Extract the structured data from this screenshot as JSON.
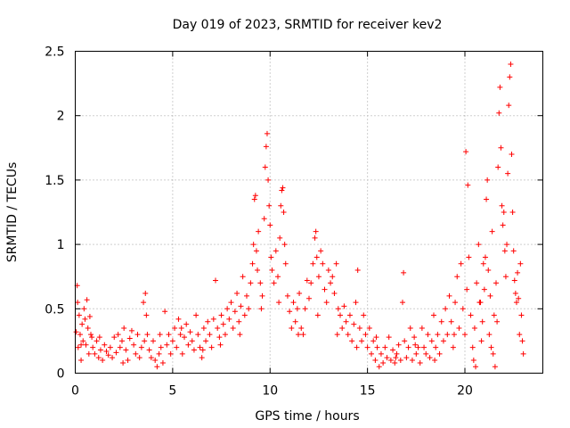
{
  "chart_data": {
    "type": "scatter",
    "title": "Day 019 of 2023, SRMTID for receiver kev2",
    "xlabel": "GPS time / hours",
    "ylabel": "SRMTID / TECUs",
    "xlim": [
      0,
      24
    ],
    "ylim": [
      0,
      2.5
    ],
    "xticks": [
      0,
      5,
      10,
      15,
      20
    ],
    "yticks": [
      0,
      0.5,
      1,
      1.5,
      2,
      2.5
    ],
    "xtick_labels": [
      "0",
      "5",
      "10",
      "15",
      "20"
    ],
    "ytick_labels": [
      "0",
      "0.5",
      "1",
      "1.5",
      "2",
      "2.5"
    ],
    "grid": true,
    "marker": "plus",
    "color": "#ff0000",
    "series": [
      {
        "name": "kev2",
        "points": [
          [
            0.05,
            0.32
          ],
          [
            0.1,
            0.68
          ],
          [
            0.12,
            0.55
          ],
          [
            0.15,
            0.2
          ],
          [
            0.2,
            0.45
          ],
          [
            0.25,
            0.3
          ],
          [
            0.3,
            0.1
          ],
          [
            0.35,
            0.38
          ],
          [
            0.4,
            0.25
          ],
          [
            0.45,
            0.5
          ],
          [
            0.5,
            0.42
          ],
          [
            0.55,
            0.22
          ],
          [
            0.6,
            0.57
          ],
          [
            0.65,
            0.35
          ],
          [
            0.7,
            0.15
          ],
          [
            0.75,
            0.44
          ],
          [
            0.8,
            0.3
          ],
          [
            0.85,
            0.28
          ],
          [
            0.9,
            0.2
          ],
          [
            1.0,
            0.15
          ],
          [
            1.1,
            0.25
          ],
          [
            1.2,
            0.12
          ],
          [
            1.3,
            0.18
          ],
          [
            1.4,
            0.1
          ],
          [
            1.5,
            0.22
          ],
          [
            1.6,
            0.17
          ],
          [
            1.7,
            0.14
          ],
          [
            1.8,
            0.2
          ],
          [
            1.9,
            0.12
          ],
          [
            2.0,
            0.28
          ],
          [
            2.1,
            0.16
          ],
          [
            2.2,
            0.3
          ],
          [
            2.3,
            0.2
          ],
          [
            2.4,
            0.25
          ],
          [
            2.5,
            0.35
          ],
          [
            2.6,
            0.18
          ],
          [
            2.7,
            0.1
          ],
          [
            2.8,
            0.27
          ],
          [
            2.9,
            0.33
          ],
          [
            3.0,
            0.22
          ],
          [
            3.1,
            0.15
          ],
          [
            3.2,
            0.3
          ],
          [
            3.3,
            0.12
          ],
          [
            3.4,
            0.2
          ],
          [
            3.5,
            0.55
          ],
          [
            3.6,
            0.62
          ],
          [
            3.65,
            0.45
          ],
          [
            3.7,
            0.3
          ],
          [
            3.8,
            0.18
          ],
          [
            3.9,
            0.12
          ],
          [
            4.0,
            0.25
          ],
          [
            4.1,
            0.1
          ],
          [
            4.2,
            0.05
          ],
          [
            4.3,
            0.15
          ],
          [
            4.4,
            0.2
          ],
          [
            4.5,
            0.08
          ],
          [
            4.6,
            0.48
          ],
          [
            4.7,
            0.22
          ],
          [
            4.8,
            0.3
          ],
          [
            4.9,
            0.15
          ],
          [
            5.0,
            0.25
          ],
          [
            5.1,
            0.35
          ],
          [
            5.2,
            0.2
          ],
          [
            5.3,
            0.42
          ],
          [
            5.4,
            0.3
          ],
          [
            5.5,
            0.15
          ],
          [
            5.6,
            0.28
          ],
          [
            5.7,
            0.38
          ],
          [
            5.8,
            0.22
          ],
          [
            5.9,
            0.32
          ],
          [
            6.0,
            0.25
          ],
          [
            6.1,
            0.18
          ],
          [
            6.2,
            0.45
          ],
          [
            6.3,
            0.3
          ],
          [
            6.4,
            0.2
          ],
          [
            6.5,
            0.12
          ],
          [
            6.6,
            0.35
          ],
          [
            6.7,
            0.25
          ],
          [
            6.8,
            0.4
          ],
          [
            6.9,
            0.3
          ],
          [
            7.0,
            0.2
          ],
          [
            7.1,
            0.42
          ],
          [
            7.2,
            0.72
          ],
          [
            7.3,
            0.35
          ],
          [
            7.4,
            0.28
          ],
          [
            7.5,
            0.45
          ],
          [
            7.6,
            0.38
          ],
          [
            7.7,
            0.3
          ],
          [
            7.8,
            0.5
          ],
          [
            7.9,
            0.42
          ],
          [
            8.0,
            0.55
          ],
          [
            8.1,
            0.35
          ],
          [
            8.2,
            0.48
          ],
          [
            8.3,
            0.62
          ],
          [
            8.4,
            0.4
          ],
          [
            8.5,
            0.52
          ],
          [
            8.6,
            0.75
          ],
          [
            8.7,
            0.45
          ],
          [
            8.8,
            0.6
          ],
          [
            8.9,
            0.5
          ],
          [
            9.0,
            0.7
          ],
          [
            9.1,
            0.85
          ],
          [
            9.15,
            1.0
          ],
          [
            9.2,
            1.35
          ],
          [
            9.25,
            1.38
          ],
          [
            9.3,
            0.95
          ],
          [
            9.35,
            0.8
          ],
          [
            9.4,
            1.1
          ],
          [
            9.5,
            0.7
          ],
          [
            9.6,
            0.6
          ],
          [
            9.7,
            1.2
          ],
          [
            9.75,
            1.6
          ],
          [
            9.8,
            1.76
          ],
          [
            9.85,
            1.86
          ],
          [
            9.9,
            1.5
          ],
          [
            9.95,
            1.3
          ],
          [
            10.0,
            1.15
          ],
          [
            10.05,
            0.9
          ],
          [
            10.1,
            0.8
          ],
          [
            10.2,
            0.7
          ],
          [
            10.3,
            0.95
          ],
          [
            10.4,
            0.75
          ],
          [
            10.5,
            1.05
          ],
          [
            10.55,
            1.3
          ],
          [
            10.6,
            1.42
          ],
          [
            10.65,
            1.44
          ],
          [
            10.7,
            1.25
          ],
          [
            10.75,
            1.0
          ],
          [
            10.8,
            0.85
          ],
          [
            10.9,
            0.6
          ],
          [
            11.0,
            0.48
          ],
          [
            11.1,
            0.35
          ],
          [
            11.2,
            0.55
          ],
          [
            11.3,
            0.4
          ],
          [
            11.4,
            0.5
          ],
          [
            11.5,
            0.62
          ],
          [
            11.6,
            0.35
          ],
          [
            11.7,
            0.3
          ],
          [
            11.8,
            0.5
          ],
          [
            11.9,
            0.72
          ],
          [
            12.0,
            0.58
          ],
          [
            12.1,
            0.7
          ],
          [
            12.2,
            0.85
          ],
          [
            12.3,
            1.05
          ],
          [
            12.35,
            1.1
          ],
          [
            12.4,
            0.9
          ],
          [
            12.5,
            0.75
          ],
          [
            12.6,
            0.95
          ],
          [
            12.7,
            0.85
          ],
          [
            12.8,
            0.65
          ],
          [
            12.9,
            0.55
          ],
          [
            13.0,
            0.8
          ],
          [
            13.1,
            0.7
          ],
          [
            13.2,
            0.75
          ],
          [
            13.3,
            0.62
          ],
          [
            13.4,
            0.85
          ],
          [
            13.5,
            0.5
          ],
          [
            13.6,
            0.45
          ],
          [
            13.7,
            0.35
          ],
          [
            13.8,
            0.52
          ],
          [
            13.9,
            0.4
          ],
          [
            14.0,
            0.3
          ],
          [
            14.1,
            0.45
          ],
          [
            14.2,
            0.25
          ],
          [
            14.3,
            0.38
          ],
          [
            14.4,
            0.55
          ],
          [
            14.5,
            0.8
          ],
          [
            14.6,
            0.35
          ],
          [
            14.7,
            0.25
          ],
          [
            14.8,
            0.45
          ],
          [
            14.9,
            0.3
          ],
          [
            15.0,
            0.2
          ],
          [
            15.1,
            0.35
          ],
          [
            15.2,
            0.15
          ],
          [
            15.3,
            0.25
          ],
          [
            15.4,
            0.1
          ],
          [
            15.5,
            0.2
          ],
          [
            15.6,
            0.05
          ],
          [
            15.7,
            0.15
          ],
          [
            15.8,
            0.08
          ],
          [
            15.9,
            0.2
          ],
          [
            16.0,
            0.12
          ],
          [
            16.1,
            0.28
          ],
          [
            16.2,
            0.1
          ],
          [
            16.3,
            0.18
          ],
          [
            16.4,
            0.08
          ],
          [
            16.5,
            0.15
          ],
          [
            16.6,
            0.22
          ],
          [
            16.7,
            0.1
          ],
          [
            16.8,
            0.55
          ],
          [
            16.85,
            0.78
          ],
          [
            16.9,
            0.25
          ],
          [
            17.0,
            0.12
          ],
          [
            17.1,
            0.2
          ],
          [
            17.2,
            0.35
          ],
          [
            17.3,
            0.1
          ],
          [
            17.4,
            0.28
          ],
          [
            17.5,
            0.15
          ],
          [
            17.6,
            0.2
          ],
          [
            17.7,
            0.08
          ],
          [
            17.8,
            0.35
          ],
          [
            17.9,
            0.2
          ],
          [
            18.0,
            0.15
          ],
          [
            18.1,
            0.3
          ],
          [
            18.2,
            0.12
          ],
          [
            18.3,
            0.25
          ],
          [
            18.4,
            0.45
          ],
          [
            18.5,
            0.2
          ],
          [
            18.6,
            0.3
          ],
          [
            18.7,
            0.15
          ],
          [
            18.8,
            0.4
          ],
          [
            18.9,
            0.25
          ],
          [
            19.0,
            0.5
          ],
          [
            19.1,
            0.3
          ],
          [
            19.2,
            0.6
          ],
          [
            19.3,
            0.4
          ],
          [
            19.4,
            0.2
          ],
          [
            19.5,
            0.55
          ],
          [
            19.6,
            0.75
          ],
          [
            19.7,
            0.35
          ],
          [
            19.8,
            0.85
          ],
          [
            19.9,
            0.5
          ],
          [
            20.0,
            0.3
          ],
          [
            20.05,
            1.72
          ],
          [
            20.1,
            0.65
          ],
          [
            20.15,
            1.46
          ],
          [
            20.2,
            0.9
          ],
          [
            20.3,
            0.45
          ],
          [
            20.4,
            0.2
          ],
          [
            20.5,
            0.35
          ],
          [
            20.6,
            0.7
          ],
          [
            20.7,
            1.0
          ],
          [
            20.8,
            0.55
          ],
          [
            20.9,
            0.4
          ],
          [
            21.0,
            0.65
          ],
          [
            21.05,
            0.9
          ],
          [
            21.1,
            1.35
          ],
          [
            21.15,
            1.5
          ],
          [
            21.2,
            0.8
          ],
          [
            21.3,
            0.6
          ],
          [
            21.4,
            1.1
          ],
          [
            21.5,
            0.45
          ],
          [
            21.6,
            0.7
          ],
          [
            21.7,
            1.6
          ],
          [
            21.75,
            2.02
          ],
          [
            21.8,
            2.22
          ],
          [
            21.85,
            1.75
          ],
          [
            21.9,
            1.3
          ],
          [
            21.95,
            1.15
          ],
          [
            22.0,
            1.25
          ],
          [
            22.05,
            0.95
          ],
          [
            22.1,
            0.75
          ],
          [
            22.15,
            1.0
          ],
          [
            22.2,
            1.55
          ],
          [
            22.25,
            2.08
          ],
          [
            22.3,
            2.3
          ],
          [
            22.35,
            2.4
          ],
          [
            22.4,
            1.7
          ],
          [
            22.45,
            1.25
          ],
          [
            22.5,
            0.95
          ],
          [
            22.55,
            0.72
          ],
          [
            22.6,
            0.62
          ],
          [
            22.65,
            0.55
          ],
          [
            22.7,
            0.78
          ],
          [
            22.75,
            0.58
          ],
          [
            22.8,
            0.3
          ],
          [
            22.85,
            0.85
          ],
          [
            22.9,
            0.45
          ],
          [
            22.95,
            0.25
          ],
          [
            23.0,
            0.15
          ],
          [
            0.3,
            0.22
          ],
          [
            1.25,
            0.28
          ],
          [
            2.45,
            0.08
          ],
          [
            3.55,
            0.25
          ],
          [
            4.35,
            0.3
          ],
          [
            5.45,
            0.35
          ],
          [
            6.55,
            0.18
          ],
          [
            7.45,
            0.22
          ],
          [
            8.45,
            0.3
          ],
          [
            9.55,
            0.5
          ],
          [
            10.45,
            0.55
          ],
          [
            11.45,
            0.3
          ],
          [
            12.45,
            0.45
          ],
          [
            13.45,
            0.3
          ],
          [
            14.45,
            0.2
          ],
          [
            15.45,
            0.28
          ],
          [
            16.45,
            0.12
          ],
          [
            17.45,
            0.22
          ],
          [
            18.45,
            0.1
          ],
          [
            19.45,
            0.3
          ],
          [
            20.45,
            0.1
          ],
          [
            20.55,
            0.05
          ],
          [
            21.45,
            0.15
          ],
          [
            21.55,
            0.05
          ],
          [
            21.65,
            0.4
          ],
          [
            21.25,
            0.3
          ],
          [
            21.35,
            0.2
          ],
          [
            20.95,
            0.85
          ],
          [
            20.85,
            0.25
          ],
          [
            20.75,
            0.55
          ]
        ]
      }
    ]
  }
}
